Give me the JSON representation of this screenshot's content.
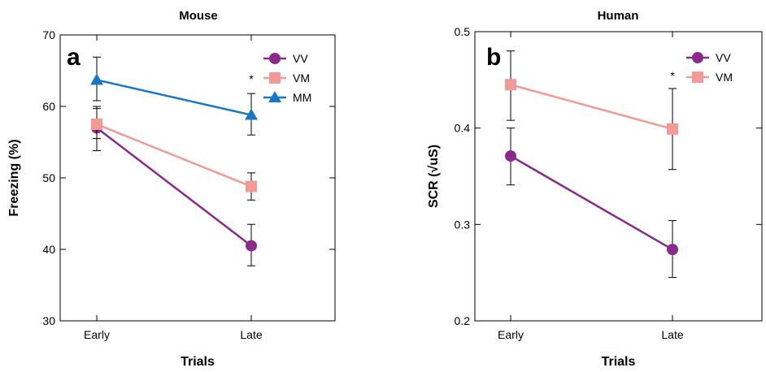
{
  "chart_data": [
    {
      "type": "line",
      "panel": "a",
      "title": "Mouse",
      "xlabel": "Trials",
      "ylabel": "Freezing (%)",
      "categories": [
        "Early",
        "Late"
      ],
      "ylim": [
        30,
        70
      ],
      "yticks": [
        "30",
        "40",
        "50",
        "60",
        "70"
      ],
      "annotation": "*",
      "legend_position": "top-right",
      "series": [
        {
          "name": "VV",
          "color": "#8a2a8a",
          "marker": "circle",
          "values": [
            57.0,
            40.5
          ],
          "err_low": [
            53.8,
            37.7
          ],
          "err_high": [
            59.7,
            43.5
          ]
        },
        {
          "name": "VM",
          "color": "#f19a97",
          "marker": "square",
          "values": [
            57.5,
            48.8
          ],
          "err_low": [
            55.5,
            46.9
          ],
          "err_high": [
            60.0,
            50.7
          ]
        },
        {
          "name": "MM",
          "color": "#1a78c2",
          "marker": "triangle",
          "values": [
            63.7,
            58.8
          ],
          "err_low": [
            60.8,
            56.0
          ],
          "err_high": [
            66.9,
            61.8
          ]
        }
      ]
    },
    {
      "type": "line",
      "panel": "b",
      "title": "Human",
      "xlabel": "Trials",
      "ylabel": "SCR (√uS)",
      "categories": [
        "Early",
        "Late"
      ],
      "ylim": [
        0.2,
        0.5
      ],
      "yticks": [
        "0.2",
        "0.3",
        "0.4",
        "0.5"
      ],
      "annotation": "*",
      "legend_position": "top-right",
      "series": [
        {
          "name": "VV",
          "color": "#8a2a8a",
          "marker": "circle",
          "values": [
            0.371,
            0.274
          ],
          "err_low": [
            0.341,
            0.245
          ],
          "err_high": [
            0.4,
            0.304
          ]
        },
        {
          "name": "VM",
          "color": "#f19a97",
          "marker": "square",
          "values": [
            0.445,
            0.399
          ],
          "err_low": [
            0.408,
            0.357
          ],
          "err_high": [
            0.48,
            0.441
          ]
        }
      ]
    }
  ]
}
